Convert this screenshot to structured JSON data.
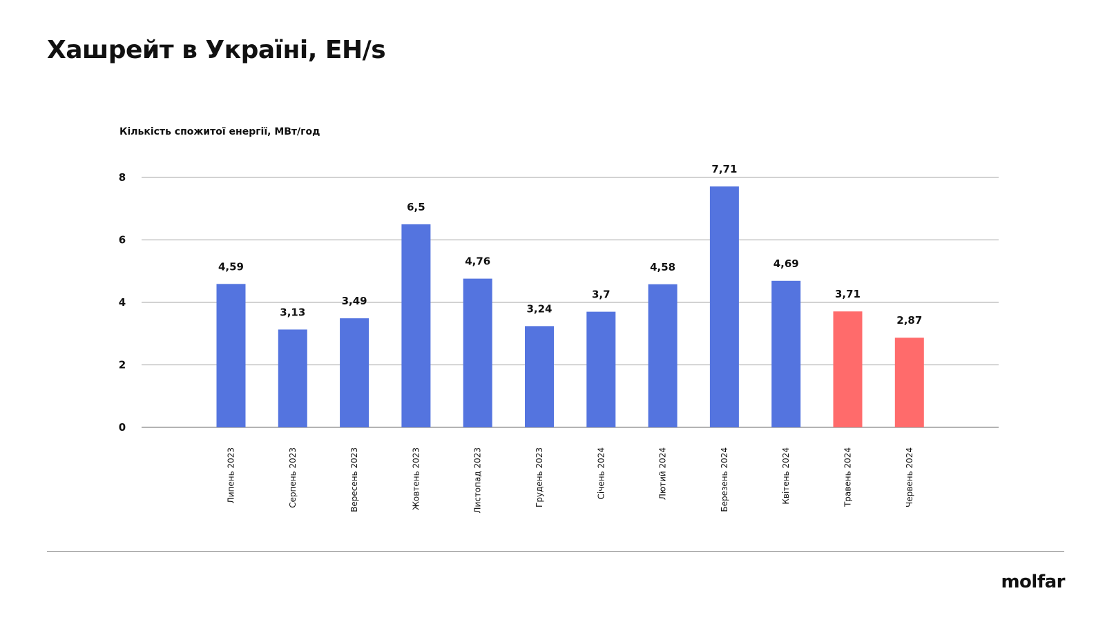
{
  "page": {
    "title": "Хашрейт в Україні, EH/s",
    "logo": "molfar"
  },
  "colors": {
    "primary_bar": "#5474df",
    "highlight_bar": "#ff6b6b",
    "grid": "#b8b8b8",
    "text": "#111111"
  },
  "chart_data": {
    "type": "bar",
    "title": "Хашрейт в Україні, EH/s",
    "ylabel": "Кількість спожитої енергії, МВт/год",
    "xlabel": "",
    "categories": [
      "Липень 2023",
      "Серпень 2023",
      "Вересень 2023",
      "Жовтень 2023",
      "Листопад 2023",
      "Грудень 2023",
      "Січень 2024",
      "Лютий 2024",
      "Березень 2024",
      "Квітень 2024",
      "Травень 2024",
      "Червень 2024"
    ],
    "values": [
      4.59,
      3.13,
      3.49,
      6.5,
      4.76,
      3.24,
      3.7,
      4.58,
      7.71,
      4.69,
      3.71,
      2.87
    ],
    "value_labels": [
      "4,59",
      "3,13",
      "3,49",
      "6,5",
      "4,76",
      "3,24",
      "3,7",
      "4,58",
      "7,71",
      "4,69",
      "3,71",
      "2,87"
    ],
    "highlighted": [
      false,
      false,
      false,
      false,
      false,
      false,
      false,
      false,
      false,
      false,
      true,
      true
    ],
    "ylim": [
      0,
      8
    ],
    "yticks": [
      0,
      2,
      4,
      6,
      8
    ],
    "grid": true,
    "legend": "none"
  }
}
